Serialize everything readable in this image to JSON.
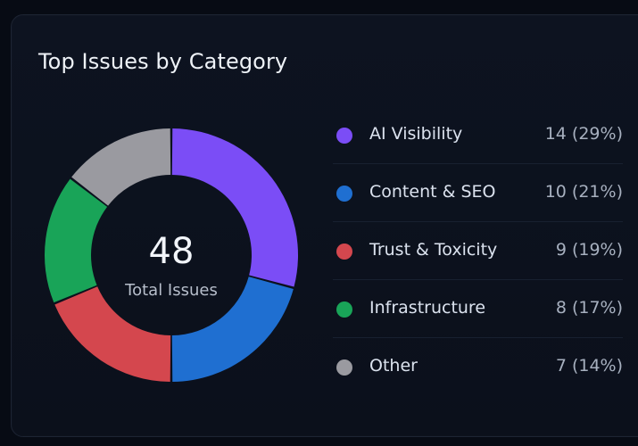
{
  "chart_data": {
    "type": "pie",
    "title": "Top Issues by Category",
    "center_value": "48",
    "center_label": "Total Issues",
    "categories": [
      "AI Visibility",
      "Content & SEO",
      "Trust & Toxicity",
      "Infrastructure",
      "Other"
    ],
    "values": [
      14,
      10,
      9,
      8,
      7
    ],
    "value_labels": [
      "14 (29%)",
      "10 (21%)",
      "9 (19%)",
      "8 (17%)",
      "7 (14%)"
    ],
    "colors": [
      "#7b4df6",
      "#1f6fd1",
      "#d4474e",
      "#19a458",
      "#9a9aa0"
    ]
  }
}
